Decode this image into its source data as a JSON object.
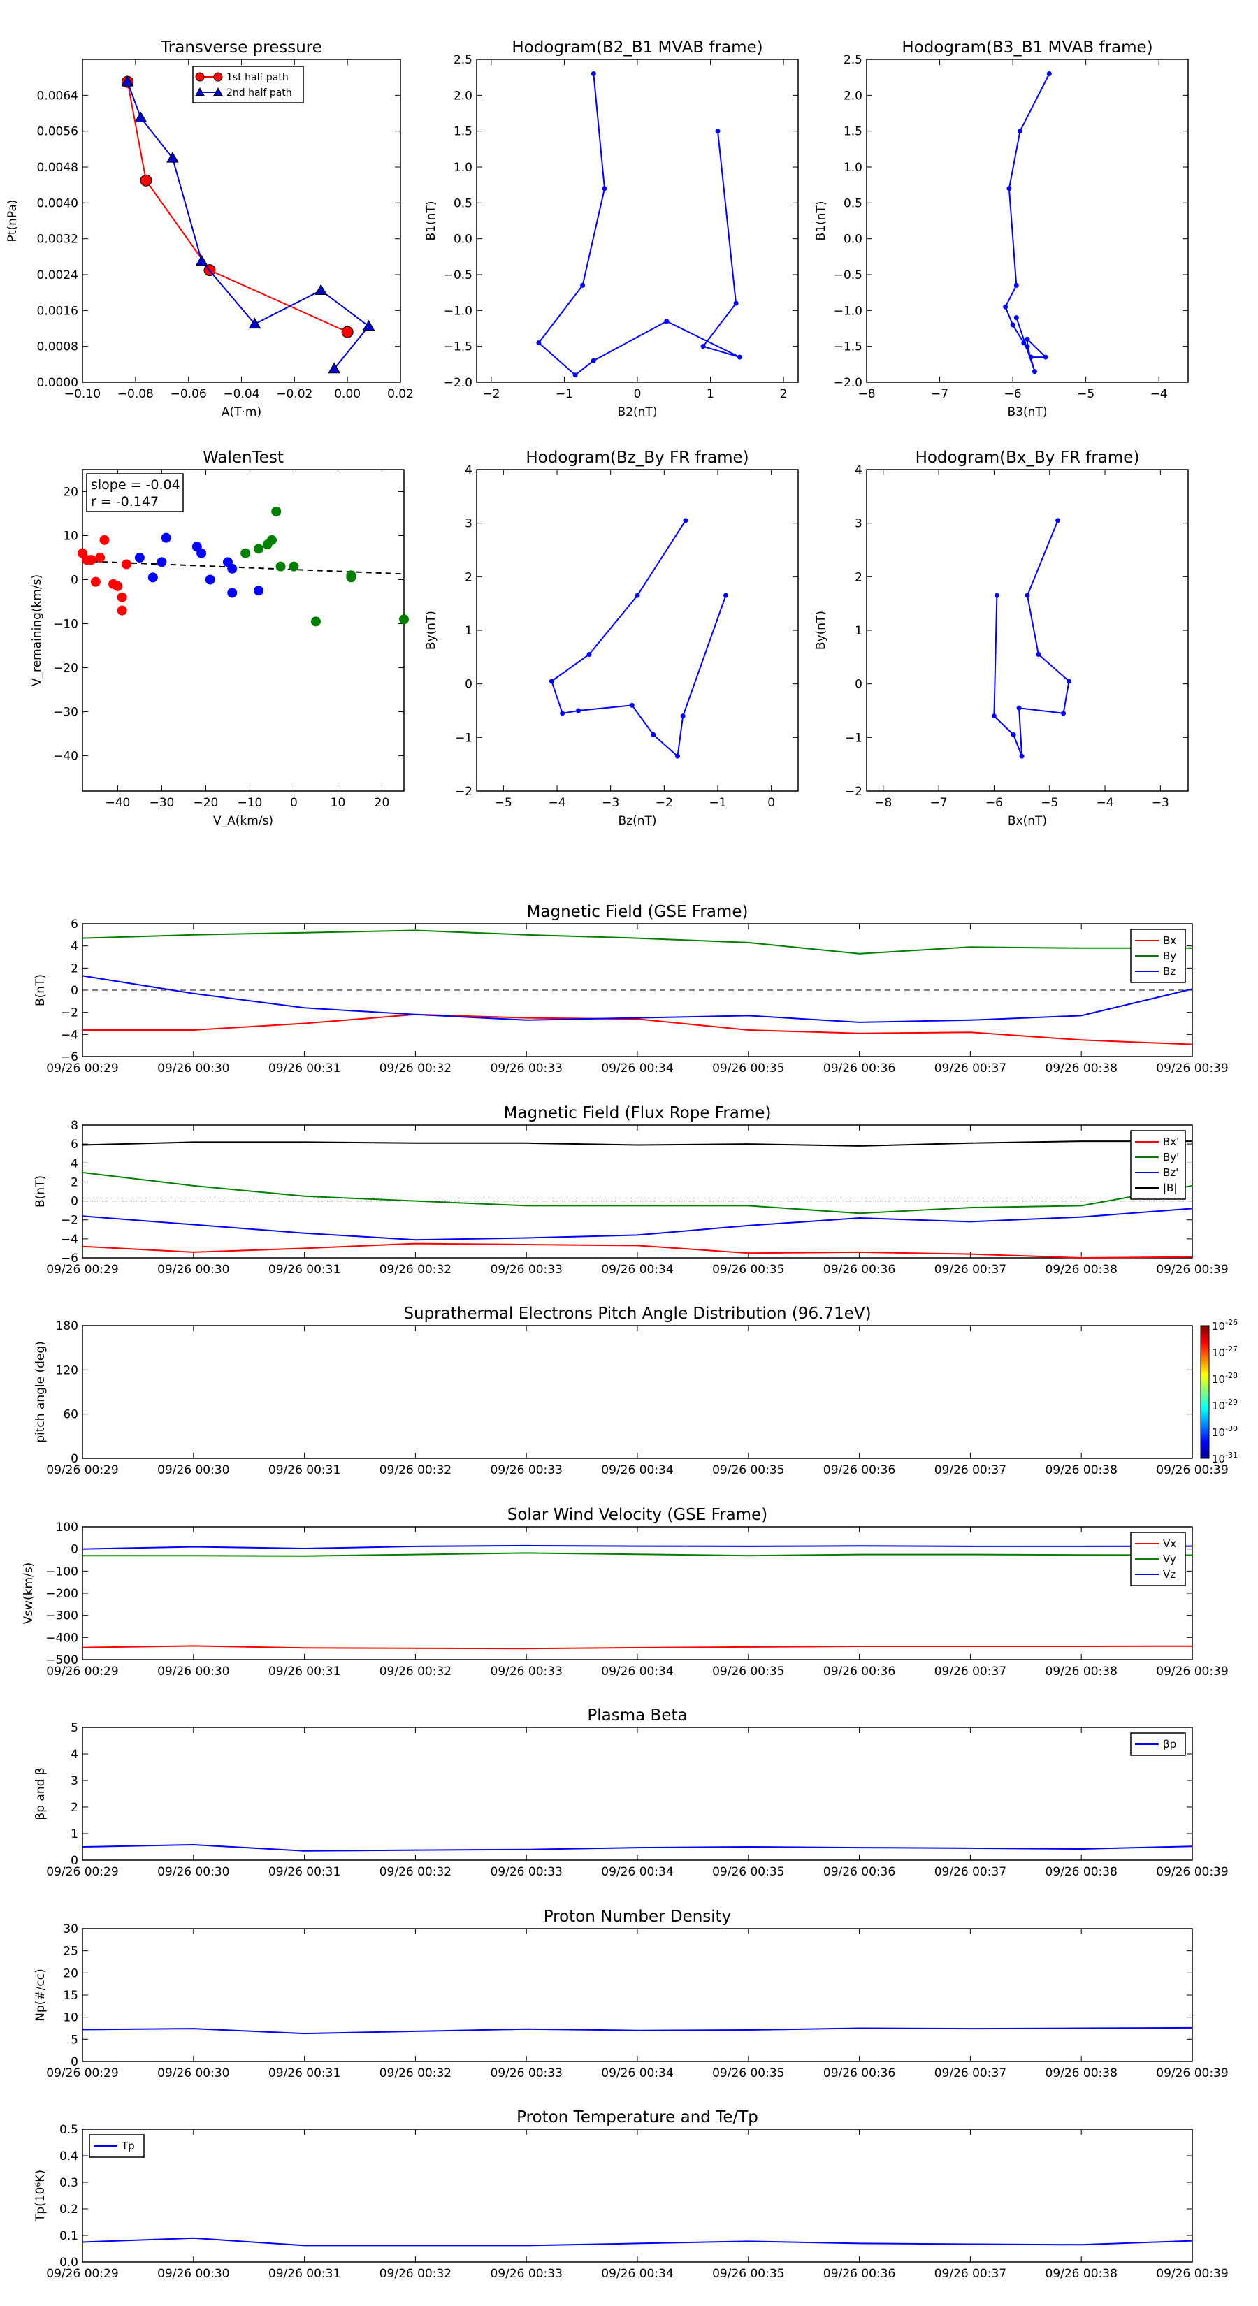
{
  "chart_data": [
    {
      "id": "pt",
      "type": "scatter",
      "title": "Transverse pressure",
      "xlabel": "A(T·m)",
      "ylabel": "Pt(nPa)",
      "xlim": [
        -0.1,
        0.02
      ],
      "ylim": [
        0,
        0.0072
      ],
      "xticks": [
        -0.1,
        -0.08,
        -0.06,
        -0.04,
        -0.02,
        0.0,
        0.02
      ],
      "xticklabels": [
        "−0.10",
        "−0.08",
        "−0.06",
        "−0.04",
        "−0.02",
        "0.00",
        "0.02"
      ],
      "yticks": [
        0,
        0.0008,
        0.0016,
        0.0024,
        0.0032,
        0.004,
        0.0048,
        0.0056,
        0.0064
      ],
      "yticklabels": [
        "0.0000",
        "0.0008",
        "0.0016",
        "0.0024",
        "0.0032",
        "0.0040",
        "0.0048",
        "0.0056",
        "0.0064"
      ],
      "legend": "top-center",
      "series": [
        {
          "name": "1st half path",
          "color": "#ff0000",
          "marker": "circle",
          "x": [
            -0.083,
            -0.076,
            -0.052,
            0.0
          ],
          "y": [
            0.0067,
            0.0045,
            0.0025,
            0.00112
          ]
        },
        {
          "name": "2nd half path",
          "color": "#0000cc",
          "marker": "triangle",
          "x": [
            -0.083,
            -0.078,
            -0.066,
            -0.055,
            -0.035,
            -0.01,
            0.008,
            -0.005
          ],
          "y": [
            0.0067,
            0.0059,
            0.005,
            0.0027,
            0.0013,
            0.00205,
            0.00125,
            0.0003
          ]
        }
      ]
    },
    {
      "id": "h12",
      "type": "line",
      "title": "Hodogram(B2_B1 MVAB frame)",
      "xlabel": "B2(nT)",
      "ylabel": "B1(nT)",
      "xlim": [
        -2.2,
        2.2
      ],
      "ylim": [
        -2.0,
        2.5
      ],
      "xticks": [
        -2,
        -1,
        0,
        1,
        2
      ],
      "xticklabels": [
        "−2",
        "−1",
        "0",
        "1",
        "2"
      ],
      "yticks": [
        -2.0,
        -1.5,
        -1.0,
        -0.5,
        0.0,
        0.5,
        1.0,
        1.5,
        2.0,
        2.5
      ],
      "yticklabels": [
        "−2.0",
        "−1.5",
        "−1.0",
        "−0.5",
        "0.0",
        "0.5",
        "1.0",
        "1.5",
        "2.0",
        "2.5"
      ],
      "series": [
        {
          "color": "#0000ff",
          "x": [
            -0.6,
            -0.45,
            -0.75,
            -1.35,
            -0.85,
            -0.6,
            0.4,
            1.4,
            0.9,
            1.35,
            1.1
          ],
          "y": [
            2.3,
            0.7,
            -0.65,
            -1.45,
            -1.9,
            -1.7,
            -1.15,
            -1.65,
            -1.5,
            -0.9,
            1.5
          ]
        }
      ]
    },
    {
      "id": "h31",
      "type": "line",
      "title": "Hodogram(B3_B1 MVAB frame)",
      "xlabel": "B3(nT)",
      "ylabel": "B1(nT)",
      "xlim": [
        -8.0,
        -3.6
      ],
      "ylim": [
        -2.0,
        2.5
      ],
      "xticks": [
        -8,
        -7,
        -6,
        -5,
        -4
      ],
      "xticklabels": [
        "−8",
        "−7",
        "−6",
        "−5",
        "−4"
      ],
      "yticks": [
        -2.0,
        -1.5,
        -1.0,
        -0.5,
        0.0,
        0.5,
        1.0,
        1.5,
        2.0,
        2.5
      ],
      "yticklabels": [
        "−2.0",
        "−1.5",
        "−1.0",
        "−0.5",
        "0.0",
        "0.5",
        "1.0",
        "1.5",
        "2.0",
        "2.5"
      ],
      "series": [
        {
          "color": "#0000ff",
          "x": [
            -5.5,
            -5.9,
            -6.05,
            -5.95,
            -6.1,
            -6.0,
            -5.85,
            -5.75,
            -5.55,
            -5.8,
            -5.8,
            -5.7,
            -5.95
          ],
          "y": [
            2.3,
            1.5,
            0.7,
            -0.65,
            -0.95,
            -1.2,
            -1.45,
            -1.65,
            -1.65,
            -1.4,
            -1.5,
            -1.85,
            -1.1
          ]
        }
      ]
    },
    {
      "id": "walen",
      "type": "scatter",
      "title": "WalenTest",
      "xlabel": "V_A(km/s)",
      "ylabel": "V_remaining(km/s)",
      "xlim": [
        -48,
        25
      ],
      "ylim": [
        -48,
        25
      ],
      "xticks": [
        -40,
        -30,
        -20,
        -10,
        0,
        10,
        20
      ],
      "xticklabels": [
        "−40",
        "−30",
        "−20",
        "−10",
        "0",
        "10",
        "20"
      ],
      "yticks": [
        -40,
        -30,
        -20,
        -10,
        0,
        10,
        20
      ],
      "yticklabels": [
        "−40",
        "−30",
        "−20",
        "−10",
        "0",
        "10",
        "20"
      ],
      "annotation": [
        "slope = -0.04",
        "r = -0.147"
      ],
      "fit": {
        "slope": -0.04,
        "intercept": 2.3
      },
      "series": [
        {
          "color": "#ff0000",
          "x": [
            -48,
            -47,
            -46,
            -45,
            -44,
            -43,
            -41,
            -40,
            -39,
            -39,
            -38
          ],
          "y": [
            6,
            4.5,
            4.5,
            -0.5,
            5,
            9,
            -1,
            -1.5,
            -4,
            -7,
            3.5
          ]
        },
        {
          "color": "#0000ff",
          "x": [
            -35,
            -32,
            -30,
            -29,
            -22,
            -21,
            -19,
            -15,
            -14,
            -14,
            -8
          ],
          "y": [
            5,
            0.5,
            4,
            9.5,
            7.5,
            6,
            0,
            4,
            -3,
            2.5,
            -2.5
          ]
        },
        {
          "color": "#008000",
          "x": [
            -11,
            -8,
            -6,
            -5,
            -4,
            -3,
            0,
            5,
            13,
            13,
            25
          ],
          "y": [
            6,
            7,
            8,
            9,
            15.5,
            3,
            3,
            -9.5,
            1,
            0.5,
            -9
          ]
        }
      ]
    },
    {
      "id": "hzy",
      "type": "line",
      "title": "Hodogram(Bz_By FR frame)",
      "xlabel": "Bz(nT)",
      "ylabel": "By(nT)",
      "xlim": [
        -5.5,
        0.5
      ],
      "ylim": [
        -2,
        4
      ],
      "xticks": [
        -5,
        -4,
        -3,
        -2,
        -1,
        0
      ],
      "xticklabels": [
        "−5",
        "−4",
        "−3",
        "−2",
        "−1",
        "0"
      ],
      "yticks": [
        -2,
        -1,
        0,
        1,
        2,
        3,
        4
      ],
      "yticklabels": [
        "−2",
        "−1",
        "0",
        "1",
        "2",
        "3",
        "4"
      ],
      "series": [
        {
          "color": "#0000ff",
          "x": [
            -1.6,
            -2.5,
            -3.4,
            -4.1,
            -3.9,
            -3.6,
            -2.6,
            -2.2,
            -1.75,
            -1.65,
            -0.85
          ],
          "y": [
            3.05,
            1.65,
            0.55,
            0.05,
            -0.55,
            -0.5,
            -0.4,
            -0.95,
            -1.35,
            -0.6,
            1.65
          ]
        }
      ]
    },
    {
      "id": "hxy",
      "type": "line",
      "title": "Hodogram(Bx_By FR frame)",
      "xlabel": "Bx(nT)",
      "ylabel": "By(nT)",
      "xlim": [
        -8.3,
        -2.5
      ],
      "ylim": [
        -2,
        4
      ],
      "xticks": [
        -8,
        -7,
        -6,
        -5,
        -4,
        -3
      ],
      "xticklabels": [
        "−8",
        "−7",
        "−6",
        "−5",
        "−4",
        "−3"
      ],
      "yticks": [
        -2,
        -1,
        0,
        1,
        2,
        3,
        4
      ],
      "yticklabels": [
        "−2",
        "−1",
        "0",
        "1",
        "2",
        "3",
        "4"
      ],
      "series": [
        {
          "color": "#0000ff",
          "x": [
            -4.85,
            -5.4,
            -5.2,
            -4.65,
            -4.75,
            -5.55,
            -5.5,
            -5.65,
            -6.0,
            -5.95
          ],
          "y": [
            3.05,
            1.65,
            0.55,
            0.05,
            -0.55,
            -0.45,
            -1.35,
            -0.95,
            -0.6,
            1.65
          ]
        }
      ]
    },
    {
      "id": "bgse",
      "type": "line",
      "title": "Magnetic Field (GSE Frame)",
      "ylabel": "B(nT)",
      "ylim": [
        -6,
        6
      ],
      "yticks": [
        -6,
        -4,
        -2,
        0,
        2,
        4,
        6
      ],
      "yticklabels": [
        "−6",
        "−4",
        "−2",
        "0",
        "2",
        "4",
        "6"
      ],
      "legend": "top-right",
      "zero_line": true,
      "x": [
        0,
        1,
        2,
        3,
        4,
        5,
        6,
        7,
        8,
        9,
        10
      ],
      "series": [
        {
          "name": "Bx",
          "color": "#ff0000",
          "values": [
            -3.6,
            -3.6,
            -3.0,
            -2.2,
            -2.5,
            -2.6,
            -3.6,
            -3.9,
            -3.8,
            -4.5,
            -4.9
          ]
        },
        {
          "name": "By",
          "color": "#008000",
          "values": [
            4.7,
            5.0,
            5.2,
            5.4,
            5.0,
            4.7,
            4.3,
            3.3,
            3.9,
            3.8,
            3.8
          ]
        },
        {
          "name": "Bz",
          "color": "#0000ff",
          "values": [
            1.3,
            -0.3,
            -1.6,
            -2.2,
            -2.7,
            -2.5,
            -2.3,
            -2.9,
            -2.7,
            -2.3,
            0.1
          ]
        }
      ]
    },
    {
      "id": "bfr",
      "type": "line",
      "title": "Magnetic Field (Flux Rope Frame)",
      "ylabel": "B(nT)",
      "ylim": [
        -6,
        8
      ],
      "yticks": [
        -6,
        -4,
        -2,
        0,
        2,
        4,
        6,
        8
      ],
      "yticklabels": [
        "−6",
        "−4",
        "−2",
        "0",
        "2",
        "4",
        "6",
        "8"
      ],
      "legend": "top-right",
      "zero_line": true,
      "x": [
        0,
        1,
        2,
        3,
        4,
        5,
        6,
        7,
        8,
        9,
        10
      ],
      "series": [
        {
          "name": "Bx'",
          "color": "#ff0000",
          "values": [
            -4.8,
            -5.4,
            -5.0,
            -4.5,
            -4.6,
            -4.7,
            -5.5,
            -5.4,
            -5.6,
            -6.0,
            -5.9
          ]
        },
        {
          "name": "By'",
          "color": "#008000",
          "values": [
            3.0,
            1.6,
            0.5,
            0.0,
            -0.5,
            -0.5,
            -0.5,
            -1.3,
            -0.7,
            -0.5,
            1.6
          ]
        },
        {
          "name": "Bz'",
          "color": "#0000ff",
          "values": [
            -1.6,
            -2.5,
            -3.4,
            -4.1,
            -3.9,
            -3.6,
            -2.6,
            -1.8,
            -2.2,
            -1.7,
            -0.8
          ]
        },
        {
          "name": "|B|",
          "color": "#000000",
          "values": [
            5.9,
            6.2,
            6.2,
            6.1,
            6.1,
            5.9,
            6.0,
            5.8,
            6.1,
            6.3,
            6.3
          ]
        }
      ]
    },
    {
      "id": "pad",
      "type": "heatmap",
      "title": "Suprathermal Electrons Pitch Angle Distribution (96.71eV)",
      "ylabel": "pitch angle (deg)",
      "ylim": [
        0,
        180
      ],
      "yticks": [
        0,
        60,
        120,
        180
      ],
      "yticklabels": [
        "0",
        "60",
        "120",
        "180"
      ],
      "colorbar": [
        "10",
        "10",
        "10",
        "10",
        "10",
        "10"
      ],
      "colorbar_exponents": [
        "-26",
        "-27",
        "-28",
        "-29",
        "-30",
        "-31"
      ],
      "values": []
    },
    {
      "id": "vsw",
      "type": "line",
      "title": "Solar Wind Velocity (GSE Frame)",
      "ylabel": "Vsw(km/s)",
      "ylim": [
        -500,
        100
      ],
      "yticks": [
        -500,
        -400,
        -300,
        -200,
        -100,
        0,
        100
      ],
      "yticklabels": [
        "−500",
        "−400",
        "−300",
        "−200",
        "−100",
        "0",
        "100"
      ],
      "legend": "top-right",
      "x": [
        0,
        1,
        2,
        3,
        4,
        5,
        6,
        7,
        8,
        9,
        10
      ],
      "series": [
        {
          "name": "Vx",
          "color": "#ff0000",
          "values": [
            -445,
            -438,
            -447,
            -449,
            -450,
            -446,
            -443,
            -440,
            -440,
            -440,
            -439
          ]
        },
        {
          "name": "Vy",
          "color": "#008000",
          "values": [
            -30,
            -30,
            -32,
            -25,
            -18,
            -24,
            -30,
            -25,
            -25,
            -27,
            -28
          ]
        },
        {
          "name": "Vz",
          "color": "#0000ff",
          "values": [
            0,
            10,
            2,
            12,
            15,
            13,
            12,
            14,
            12,
            12,
            13
          ]
        }
      ]
    },
    {
      "id": "beta",
      "type": "line",
      "title": "Plasma Beta",
      "ylabel": "βp and β",
      "ylim": [
        0,
        5
      ],
      "yticks": [
        0,
        1,
        2,
        3,
        4,
        5
      ],
      "yticklabels": [
        "0",
        "1",
        "2",
        "3",
        "4",
        "5"
      ],
      "legend": "top-right",
      "x": [
        0,
        1,
        2,
        3,
        4,
        5,
        6,
        7,
        8,
        9,
        10
      ],
      "series": [
        {
          "name": "βp",
          "color": "#0000ff",
          "values": [
            0.5,
            0.58,
            0.35,
            0.38,
            0.4,
            0.47,
            0.5,
            0.47,
            0.45,
            0.42,
            0.52
          ]
        }
      ]
    },
    {
      "id": "np",
      "type": "line",
      "title": "Proton Number Density",
      "ylabel": "Np(#/cc)",
      "ylim": [
        0,
        30
      ],
      "yticks": [
        0,
        5,
        10,
        15,
        20,
        25,
        30
      ],
      "yticklabels": [
        "0",
        "5",
        "10",
        "15",
        "20",
        "25",
        "30"
      ],
      "x": [
        0,
        1,
        2,
        3,
        4,
        5,
        6,
        7,
        8,
        9,
        10
      ],
      "series": [
        {
          "color": "#0000ff",
          "values": [
            7.2,
            7.4,
            6.3,
            6.8,
            7.3,
            7.0,
            7.1,
            7.5,
            7.4,
            7.5,
            7.6
          ]
        }
      ]
    },
    {
      "id": "tp",
      "type": "line",
      "title": "Proton Temperature and Te/Tp",
      "ylabel": "Tp(10⁶K)",
      "ylim": [
        0,
        0.5
      ],
      "yticks": [
        0,
        0.1,
        0.2,
        0.3,
        0.4,
        0.5
      ],
      "yticklabels": [
        "0.0",
        "0.1",
        "0.2",
        "0.3",
        "0.4",
        "0.5"
      ],
      "legend": "top-left",
      "x": [
        0,
        1,
        2,
        3,
        4,
        5,
        6,
        7,
        8,
        9,
        10
      ],
      "series": [
        {
          "name": "Tp",
          "color": "#0000ff",
          "values": [
            0.075,
            0.09,
            0.062,
            0.062,
            0.062,
            0.07,
            0.078,
            0.07,
            0.067,
            0.065,
            0.08
          ]
        }
      ]
    }
  ],
  "time_axis_labels": [
    "09/26 00:29",
    "09/26 00:30",
    "09/26 00:31",
    "09/26 00:32",
    "09/26 00:33",
    "09/26 00:34",
    "09/26 00:35",
    "09/26 00:36",
    "09/26 00:37",
    "09/26 00:38",
    "09/26 00:39"
  ]
}
